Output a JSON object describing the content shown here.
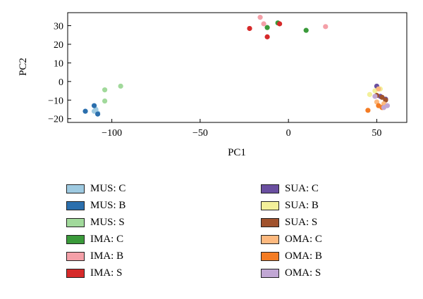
{
  "chart_data": {
    "type": "scatter",
    "xlabel": "PC1",
    "ylabel": "PC2",
    "xlim": [
      -125,
      67
    ],
    "ylim": [
      -22,
      37
    ],
    "xticks": [
      -100,
      -50,
      0,
      50
    ],
    "yticks": [
      -20,
      -10,
      0,
      10,
      20,
      30
    ],
    "grid": false,
    "legend_position": "below",
    "series": [
      {
        "name": "MUS: C",
        "color": "#9ecae1",
        "points": [
          [
            -110,
            -16
          ],
          [
            -109,
            -15
          ],
          [
            -108,
            -17
          ]
        ]
      },
      {
        "name": "MUS: B",
        "color": "#2b6fad",
        "points": [
          [
            -115,
            -16
          ],
          [
            -110,
            -13
          ],
          [
            -108,
            -17.5
          ]
        ]
      },
      {
        "name": "MUS: S",
        "color": "#a1d99b",
        "points": [
          [
            -104,
            -4.5
          ],
          [
            -104,
            -10.5
          ],
          [
            -95,
            -2.5
          ]
        ]
      },
      {
        "name": "IMA: C",
        "color": "#3a9a3a",
        "points": [
          [
            -12,
            29
          ],
          [
            -6,
            31.5
          ],
          [
            10,
            27.5
          ]
        ]
      },
      {
        "name": "IMA: B",
        "color": "#f4a0a8",
        "points": [
          [
            -16,
            34.5
          ],
          [
            -14,
            31
          ],
          [
            21,
            29.5
          ]
        ]
      },
      {
        "name": "IMA: S",
        "color": "#d62a2a",
        "points": [
          [
            -22,
            28.5
          ],
          [
            -12,
            24
          ],
          [
            -5,
            31
          ]
        ]
      },
      {
        "name": "SUA: C",
        "color": "#6a4fa0",
        "points": [
          [
            50,
            -2.5
          ],
          [
            52,
            -8
          ],
          [
            55,
            -9.5
          ]
        ]
      },
      {
        "name": "SUA: B",
        "color": "#f3f09a",
        "points": [
          [
            46,
            -7
          ],
          [
            49,
            -5
          ],
          [
            52,
            -4
          ]
        ]
      },
      {
        "name": "SUA: S",
        "color": "#a0522d",
        "points": [
          [
            50,
            -7.5
          ],
          [
            53,
            -8.5
          ],
          [
            55,
            -10
          ]
        ]
      },
      {
        "name": "OMA: C",
        "color": "#fdb97f",
        "points": [
          [
            50,
            -11
          ],
          [
            51,
            -4
          ],
          [
            54,
            -12
          ]
        ]
      },
      {
        "name": "OMA: B",
        "color": "#f47c24",
        "points": [
          [
            45,
            -15.5
          ],
          [
            51,
            -13
          ],
          [
            53,
            -14
          ]
        ]
      },
      {
        "name": "OMA: S",
        "color": "#c1a7d4",
        "points": [
          [
            49,
            -8
          ],
          [
            54,
            -14
          ],
          [
            56,
            -13
          ]
        ]
      }
    ]
  }
}
